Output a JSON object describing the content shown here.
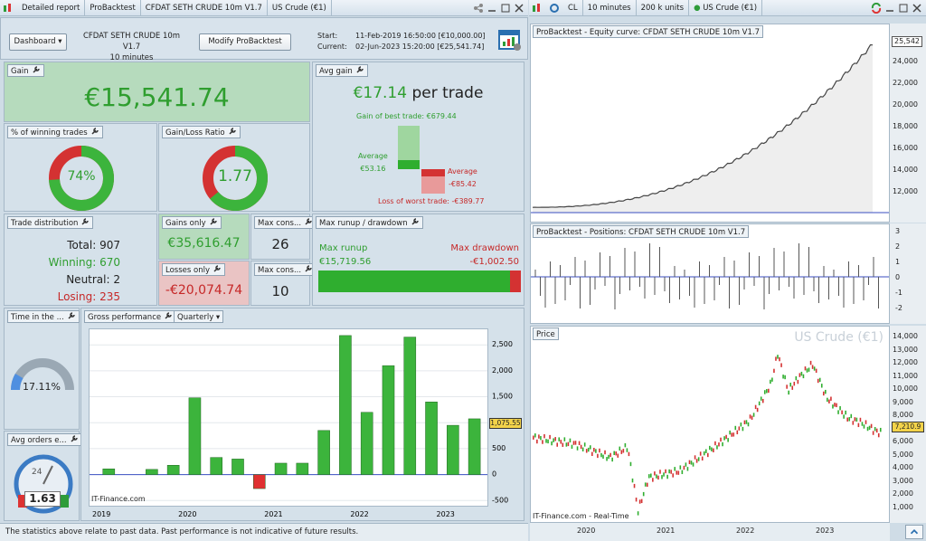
{
  "left_tabs": [
    "Detailed report",
    "ProBacktest",
    "CFDAT SETH CRUDE 10m V1.7",
    "US Crude (€1)"
  ],
  "right_tabs": {
    "ticker": "CL",
    "interval": "10 minutes",
    "units": "200 k units",
    "instrument": "US Crude (€1)"
  },
  "header": {
    "dashboard": "Dashboard",
    "system": "CFDAT SETH CRUDE 10m V1.7",
    "timeframe": "10 minutes",
    "modify": "Modify ProBacktest",
    "start_label": "Start:",
    "start_value": "11-Feb-2019 16:50:00 [€10,000.00]",
    "current_label": "Current:",
    "current_value": "02-Jun-2023 15:20:00 [€25,541.74]"
  },
  "gain": {
    "title": "Gain",
    "value": "€15,541.74"
  },
  "avg_gain": {
    "title": "Avg gain",
    "value": "€17.14",
    "suffix": " per trade",
    "best": "Gain of best trade: €679.44",
    "avg_label": "Average",
    "avg_win": "€53.16",
    "avg_loss_label": "Average",
    "avg_loss": "-€85.42",
    "worst": "Loss of worst trade: -€389.77"
  },
  "winning_pct": {
    "title": "% of winning trades",
    "value": "74%",
    "fraction": 0.74
  },
  "gain_loss": {
    "title": "Gain/Loss Ratio",
    "value": "1.77",
    "fraction": 0.64
  },
  "distribution": {
    "title": "Trade distribution",
    "total": "Total: 907",
    "winning": "Winning: 670",
    "neutral": "Neutral: 2",
    "losing": "Losing: 235"
  },
  "gains_only": {
    "title": "Gains only",
    "value": "€35,616.47"
  },
  "losses_only": {
    "title": "Losses only",
    "value": "-€20,074.74"
  },
  "max_cons_win": {
    "title": "Max cons...",
    "value": "26"
  },
  "max_cons_loss": {
    "title": "Max cons...",
    "value": "10"
  },
  "runup": {
    "title": "Max runup / drawdown",
    "runup_label": "Max runup",
    "runup_value": "€15,719.56",
    "dd_label": "Max drawdown",
    "dd_value": "-€1,002.50"
  },
  "time_in": {
    "title": "Time in the ...",
    "value": "17.11%",
    "fraction": 0.1711
  },
  "avg_orders": {
    "title": "Avg orders e...",
    "value": "1.63",
    "dial": "24"
  },
  "gross": {
    "title": "Gross performance",
    "period": "Quarterly",
    "watermark": "IT-Finance.com",
    "last_value": "1,075.55"
  },
  "footer": "The statistics above relate to past data. Past performance is not indicative of future results.",
  "equity": {
    "title": "ProBacktest - Equity curve: CFDAT SETH CRUDE 10m V1.7",
    "last": "25,542",
    "ticks": [
      "24,000",
      "22,000",
      "20,000",
      "18,000",
      "16,000",
      "14,000",
      "12,000"
    ]
  },
  "positions": {
    "title": "ProBacktest - Positions: CFDAT SETH CRUDE 10m V1.7",
    "ticks": [
      "3",
      "2",
      "1",
      "0",
      "-1",
      "-2"
    ]
  },
  "price": {
    "title": "Price",
    "watermark": "US Crude (€1)",
    "source": "IT-Finance.com - Real-Time",
    "last": "7,210.9",
    "ticks": [
      "14,000",
      "13,000",
      "12,000",
      "11,000",
      "10,000",
      "9,000",
      "8,000",
      "7,000",
      "6,000",
      "5,000",
      "4,000",
      "3,000",
      "2,000",
      "1,000"
    ],
    "years": [
      "2020",
      "2021",
      "2022",
      "2023"
    ]
  },
  "chart_data": {
    "type": "bar",
    "title": "Gross performance",
    "categories": [
      "2019 Q1",
      "2019 Q2",
      "2019 Q3",
      "2019 Q4",
      "2020 Q1",
      "2020 Q2",
      "2020 Q3",
      "2020 Q4",
      "2021 Q1",
      "2021 Q2",
      "2021 Q3",
      "2021 Q4",
      "2022 Q1",
      "2022 Q2",
      "2022 Q3",
      "2022 Q4",
      "2023 Q1",
      "2023 Q2"
    ],
    "values": [
      110,
      0,
      100,
      180,
      1480,
      330,
      300,
      -270,
      220,
      220,
      850,
      2680,
      1200,
      2100,
      2650,
      1400,
      950,
      1075
    ],
    "ylim": [
      -600,
      2800
    ],
    "yticks": [
      "2,500",
      "2,000",
      "1,500",
      "1,000",
      "500",
      "0",
      "-500"
    ],
    "years": [
      "2019",
      "2020",
      "2021",
      "2022",
      "2023"
    ]
  }
}
